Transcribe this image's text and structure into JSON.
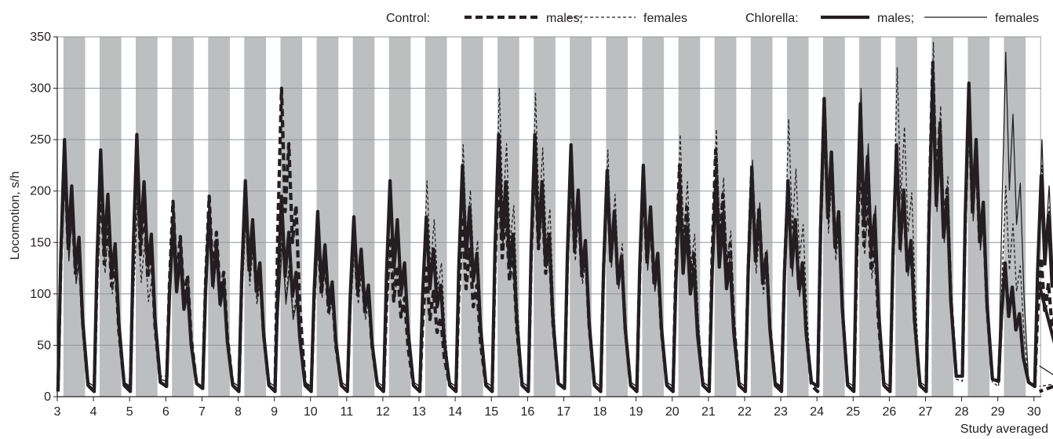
{
  "chart_data": {
    "type": "line",
    "ylabel": "Locomotion, s/h",
    "xlabel": "Study averaged",
    "xlim": [
      3,
      30.2
    ],
    "ylim": [
      0,
      350
    ],
    "yticks": [
      0,
      50,
      100,
      150,
      200,
      250,
      300,
      350
    ],
    "xticks": [
      3,
      4,
      5,
      6,
      7,
      8,
      9,
      10,
      11,
      12,
      13,
      14,
      15,
      16,
      17,
      18,
      19,
      20,
      21,
      22,
      23,
      24,
      25,
      26,
      27,
      28,
      29,
      30
    ],
    "grid": "horizontal",
    "dark_phase_bands": "grey vertical bands within each day",
    "legend": {
      "position": "top-right",
      "groups": [
        {
          "label": "Control:",
          "entries": [
            {
              "name": "males;",
              "style": "thick-dashed"
            },
            {
              "name": "females",
              "style": "thin-dashed"
            }
          ]
        },
        {
          "label": "Chlorella:",
          "entries": [
            {
              "name": "males;",
              "style": "thick-solid"
            },
            {
              "name": "females",
              "style": "thin-solid"
            }
          ]
        }
      ]
    },
    "series": [
      {
        "name": "Control males",
        "style": "thick-dashed",
        "peaks": [
          240,
          215,
          230,
          190,
          195,
          205,
          300,
          165,
          165,
          155,
          125,
          175,
          225,
          240,
          235,
          220,
          215,
          225,
          240,
          225,
          210,
          290,
          245,
          240,
          325,
          295,
          130,
          135
        ],
        "troughs": [
          5,
          5,
          8,
          10,
          8,
          5,
          5,
          8,
          8,
          5,
          5,
          5,
          5,
          5,
          8,
          5,
          5,
          5,
          5,
          5,
          8,
          5,
          5,
          5,
          5,
          20,
          15,
          10
        ],
        "last_value": 5
      },
      {
        "name": "Control females",
        "style": "thin-dashed",
        "peaks": [
          245,
          200,
          185,
          175,
          180,
          180,
          160,
          160,
          150,
          155,
          210,
          245,
          300,
          295,
          220,
          240,
          215,
          255,
          260,
          200,
          270,
          265,
          230,
          320,
          345,
          300,
          205,
          225
        ],
        "troughs": [
          30,
          10,
          10,
          20,
          10,
          10,
          10,
          10,
          10,
          10,
          10,
          10,
          10,
          10,
          10,
          10,
          10,
          10,
          10,
          10,
          10,
          10,
          5,
          5,
          5,
          15,
          10,
          10
        ],
        "last_value": 10
      },
      {
        "name": "Chlorella males",
        "style": "thick-solid",
        "peaks": [
          250,
          240,
          255,
          170,
          180,
          210,
          195,
          180,
          175,
          210,
          175,
          225,
          255,
          255,
          245,
          220,
          225,
          200,
          210,
          220,
          210,
          290,
          285,
          245,
          310,
          305,
          130,
          215
        ],
        "troughs": [
          5,
          5,
          5,
          10,
          8,
          5,
          5,
          5,
          5,
          5,
          5,
          5,
          5,
          5,
          8,
          5,
          5,
          5,
          5,
          5,
          5,
          10,
          5,
          5,
          5,
          20,
          15,
          10
        ],
        "last_value": 108
      },
      {
        "name": "Chlorella females",
        "style": "thin-solid",
        "peaks": [
          220,
          235,
          245,
          190,
          175,
          190,
          150,
          170,
          165,
          195,
          175,
          225,
          245,
          250,
          240,
          210,
          205,
          220,
          230,
          230,
          195,
          280,
          300,
          235,
          300,
          285,
          335,
          250
        ],
        "troughs": [
          28,
          10,
          10,
          15,
          10,
          10,
          10,
          10,
          10,
          10,
          10,
          10,
          10,
          10,
          10,
          10,
          10,
          10,
          10,
          10,
          10,
          10,
          10,
          10,
          10,
          20,
          15,
          10
        ],
        "last_value": 30
      }
    ]
  }
}
